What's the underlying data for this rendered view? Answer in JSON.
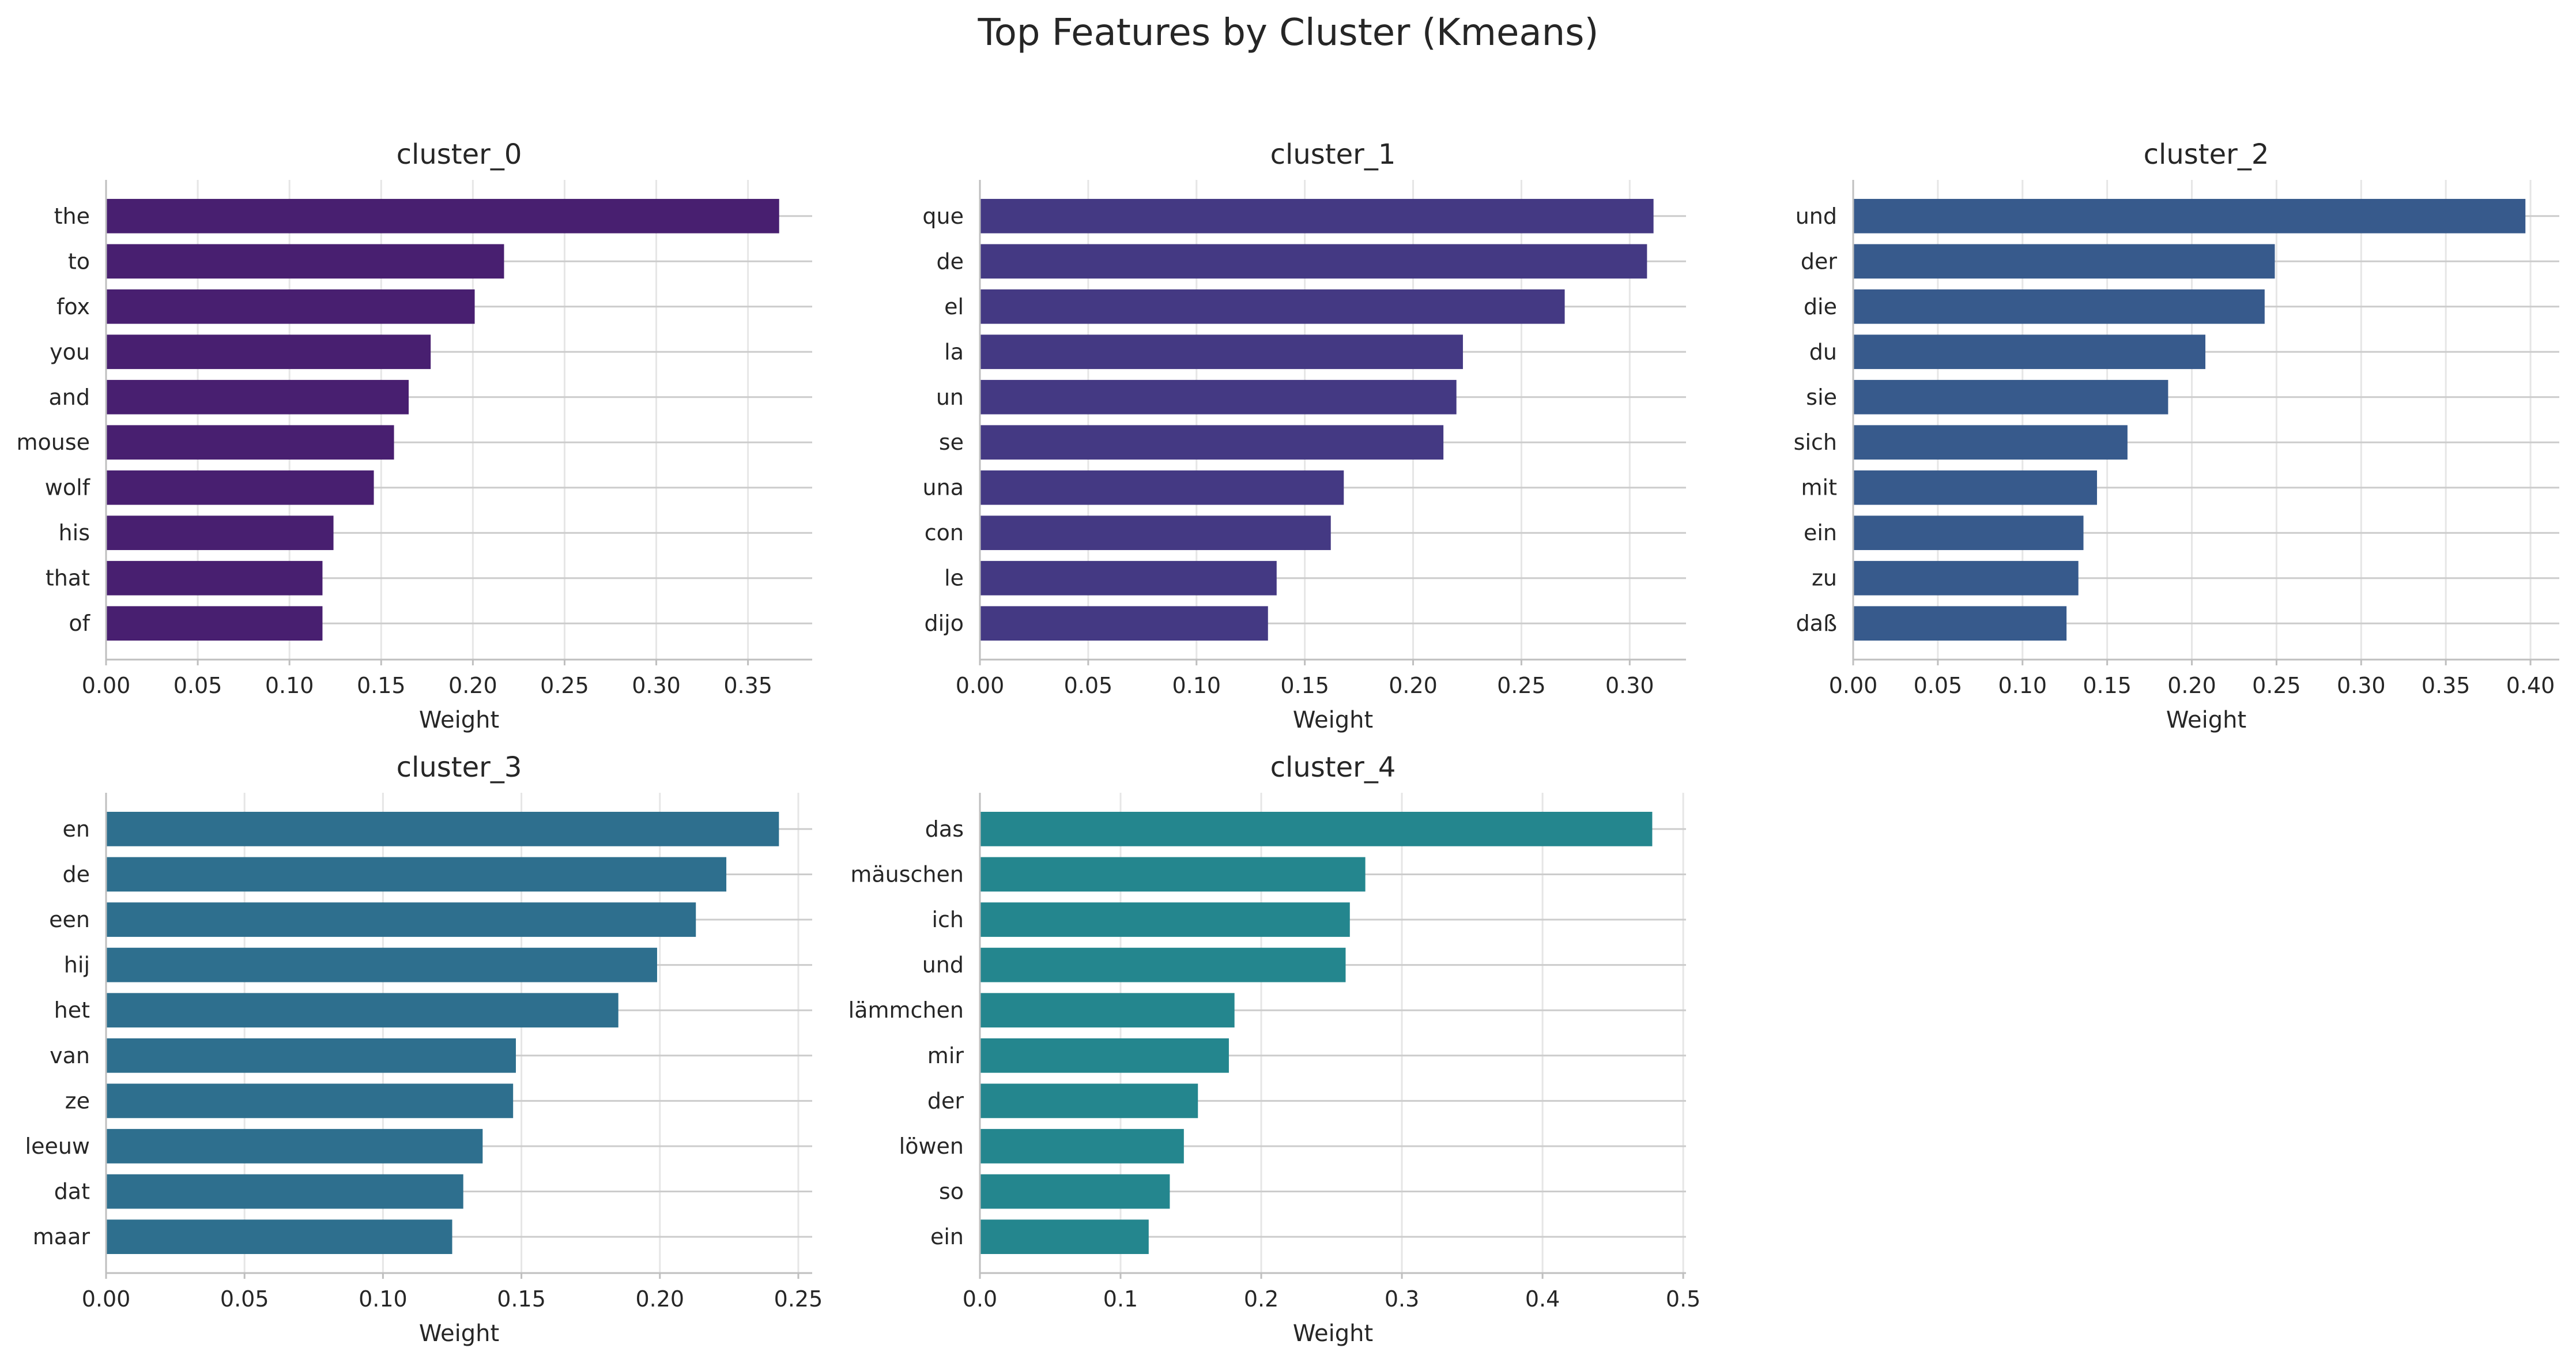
{
  "figure": {
    "title": "Top Features by Cluster (Kmeans)"
  },
  "chart_data": [
    {
      "type": "bar",
      "orientation": "horizontal",
      "title": "cluster_0",
      "xlabel": "Weight",
      "ylabel": "",
      "color": "#481f70",
      "xlim": [
        0,
        0.385
      ],
      "xticks": [
        "0.00",
        "0.05",
        "0.10",
        "0.15",
        "0.20",
        "0.25",
        "0.30",
        "0.35"
      ],
      "categories": [
        "the",
        "to",
        "fox",
        "you",
        "and",
        "mouse",
        "wolf",
        "his",
        "that",
        "of"
      ],
      "values": [
        0.367,
        0.217,
        0.201,
        0.177,
        0.165,
        0.157,
        0.146,
        0.124,
        0.118,
        0.118
      ],
      "grid": true
    },
    {
      "type": "bar",
      "orientation": "horizontal",
      "title": "cluster_1",
      "xlabel": "Weight",
      "ylabel": "",
      "color": "#443983",
      "xlim": [
        0,
        0.326
      ],
      "xticks": [
        "0.00",
        "0.05",
        "0.10",
        "0.15",
        "0.20",
        "0.25",
        "0.30"
      ],
      "categories": [
        "que",
        "de",
        "el",
        "la",
        "un",
        "se",
        "una",
        "con",
        "le",
        "dijo"
      ],
      "values": [
        0.311,
        0.308,
        0.27,
        0.223,
        0.22,
        0.214,
        0.168,
        0.162,
        0.137,
        0.133
      ],
      "grid": true
    },
    {
      "type": "bar",
      "orientation": "horizontal",
      "title": "cluster_2",
      "xlabel": "Weight",
      "ylabel": "",
      "color": "#375a8c",
      "xlim": [
        0,
        0.417
      ],
      "xticks": [
        "0.00",
        "0.05",
        "0.10",
        "0.15",
        "0.20",
        "0.25",
        "0.30",
        "0.35",
        "0.40"
      ],
      "categories": [
        "und",
        "der",
        "die",
        "du",
        "sie",
        "sich",
        "mit",
        "ein",
        "zu",
        "daß"
      ],
      "values": [
        0.397,
        0.249,
        0.243,
        0.208,
        0.186,
        0.162,
        0.144,
        0.136,
        0.133,
        0.126
      ],
      "grid": true
    },
    {
      "type": "bar",
      "orientation": "horizontal",
      "title": "cluster_3",
      "xlabel": "Weight",
      "ylabel": "",
      "color": "#2e6f8e",
      "xlim": [
        0,
        0.255
      ],
      "xticks": [
        "0.00",
        "0.05",
        "0.10",
        "0.15",
        "0.20",
        "0.25"
      ],
      "categories": [
        "en",
        "de",
        "een",
        "hij",
        "het",
        "van",
        "ze",
        "leeuw",
        "dat",
        "maar"
      ],
      "values": [
        0.243,
        0.224,
        0.213,
        0.199,
        0.185,
        0.148,
        0.147,
        0.136,
        0.129,
        0.125
      ],
      "grid": true
    },
    {
      "type": "bar",
      "orientation": "horizontal",
      "title": "cluster_4",
      "xlabel": "Weight",
      "ylabel": "",
      "color": "#24868e",
      "xlim": [
        0,
        0.502
      ],
      "xticks": [
        "0.0",
        "0.1",
        "0.2",
        "0.3",
        "0.4",
        "0.5"
      ],
      "categories": [
        "das",
        "mäuschen",
        "ich",
        "und",
        "lämmchen",
        "mir",
        "der",
        "löwen",
        "so",
        "ein"
      ],
      "values": [
        0.478,
        0.274,
        0.263,
        0.26,
        0.181,
        0.177,
        0.155,
        0.145,
        0.135,
        0.12
      ],
      "grid": true
    }
  ]
}
